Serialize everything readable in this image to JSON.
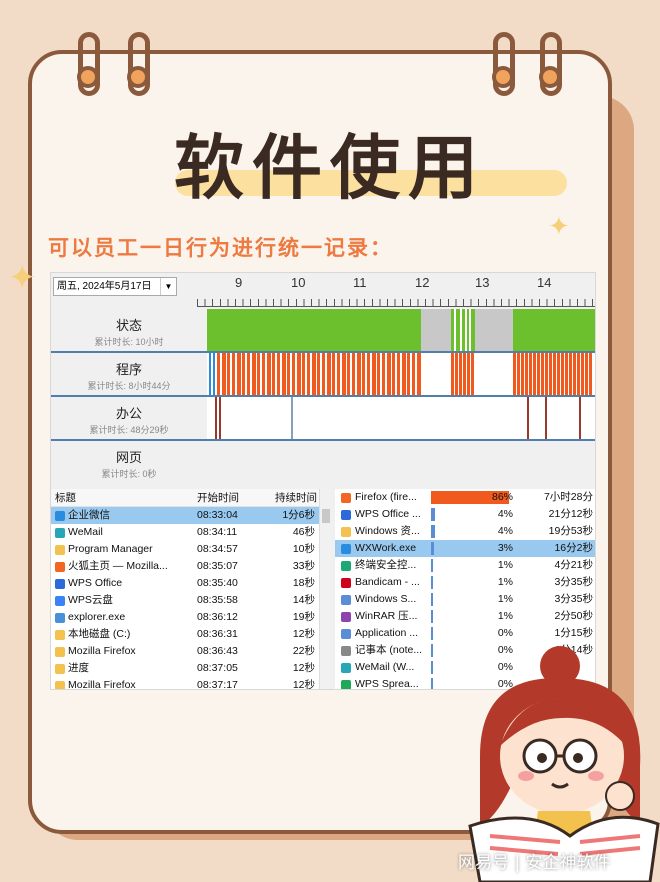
{
  "poster": {
    "title": "软件使用",
    "subtitle": "可以员工一日行为进行统一记录：",
    "watermark": "网易号 | 安企神软件"
  },
  "toolbar": {
    "date": "周五, 2024年5月17日",
    "hours": [
      "9",
      "10",
      "11",
      "12",
      "13",
      "14"
    ]
  },
  "timeline": {
    "rows": [
      {
        "label": "状态",
        "stat": "累计时长: 10小时"
      },
      {
        "label": "程序",
        "stat": "累计时长: 8小时44分"
      },
      {
        "label": "办公",
        "stat": "累计时长: 48分29秒"
      },
      {
        "label": "网页",
        "stat": "累计时长: 0秒"
      }
    ],
    "colors": {
      "active": "#6cbf2d",
      "idle": "#c8c8c8",
      "program": "#f05a1e",
      "office": "#9a3a2a",
      "divider": "#4f7fae"
    }
  },
  "left_list": {
    "headers": {
      "title": "标题",
      "start": "开始时间",
      "duration": "持续时间"
    },
    "rows": [
      {
        "title": "企业微信",
        "start": "08:33:04",
        "duration": "1分6秒",
        "icon": "wework-icon",
        "selected": true
      },
      {
        "title": "WeMail",
        "start": "08:34:11",
        "duration": "46秒",
        "icon": "wemail-icon"
      },
      {
        "title": "Program Manager",
        "start": "08:34:57",
        "duration": "10秒",
        "icon": "folder-icon"
      },
      {
        "title": "火狐主页 — Mozilla...",
        "start": "08:35:07",
        "duration": "33秒",
        "icon": "firefox-icon"
      },
      {
        "title": "WPS Office",
        "start": "08:35:40",
        "duration": "18秒",
        "icon": "wps-icon"
      },
      {
        "title": "WPS云盘",
        "start": "08:35:58",
        "duration": "14秒",
        "icon": "wps-cloud-icon"
      },
      {
        "title": "explorer.exe",
        "start": "08:36:12",
        "duration": "19秒",
        "icon": "explorer-icon"
      },
      {
        "title": "本地磁盘 (C:)",
        "start": "08:36:31",
        "duration": "12秒",
        "icon": "folder-icon"
      },
      {
        "title": "Mozilla Firefox",
        "start": "08:36:43",
        "duration": "22秒",
        "icon": "folder-icon"
      },
      {
        "title": "进度",
        "start": "08:37:05",
        "duration": "12秒",
        "icon": "folder-icon"
      },
      {
        "title": "Mozilla Firefox",
        "start": "08:37:17",
        "duration": "12秒",
        "icon": "folder-icon"
      }
    ]
  },
  "right_list": {
    "rows": [
      {
        "name": "Firefox (fire...",
        "percent": "86%",
        "pct_value": 86,
        "time": "7小时28分",
        "icon": "firefox-icon"
      },
      {
        "name": "WPS Office ...",
        "percent": "4%",
        "pct_value": 4,
        "time": "21分12秒",
        "icon": "wps-icon"
      },
      {
        "name": "Windows 资...",
        "percent": "4%",
        "pct_value": 4,
        "time": "19分53秒",
        "icon": "folder-icon"
      },
      {
        "name": "WXWork.exe",
        "percent": "3%",
        "pct_value": 3,
        "time": "16分2秒",
        "icon": "wework-icon",
        "selected": true
      },
      {
        "name": "终端安全控...",
        "percent": "1%",
        "pct_value": 1,
        "time": "4分21秒",
        "icon": "security-icon"
      },
      {
        "name": "Bandicam - ...",
        "percent": "1%",
        "pct_value": 1,
        "time": "3分35秒",
        "icon": "bandicam-icon"
      },
      {
        "name": "Windows S...",
        "percent": "1%",
        "pct_value": 1,
        "time": "3分35秒",
        "icon": "window-icon"
      },
      {
        "name": "WinRAR 压...",
        "percent": "1%",
        "pct_value": 1,
        "time": "2分50秒",
        "icon": "winrar-icon"
      },
      {
        "name": "Application ...",
        "percent": "0%",
        "pct_value": 0,
        "time": "1分15秒",
        "icon": "window-icon"
      },
      {
        "name": "记事本 (note...",
        "percent": "0%",
        "pct_value": 0,
        "time": "1分14秒",
        "icon": "notepad-icon"
      },
      {
        "name": "WeMail (W...",
        "percent": "0%",
        "pct_value": 0,
        "time": "",
        "icon": "wemail-icon"
      },
      {
        "name": "WPS Sprea...",
        "percent": "0%",
        "pct_value": 0,
        "time": "",
        "icon": "wps-sheet-icon"
      }
    ]
  }
}
